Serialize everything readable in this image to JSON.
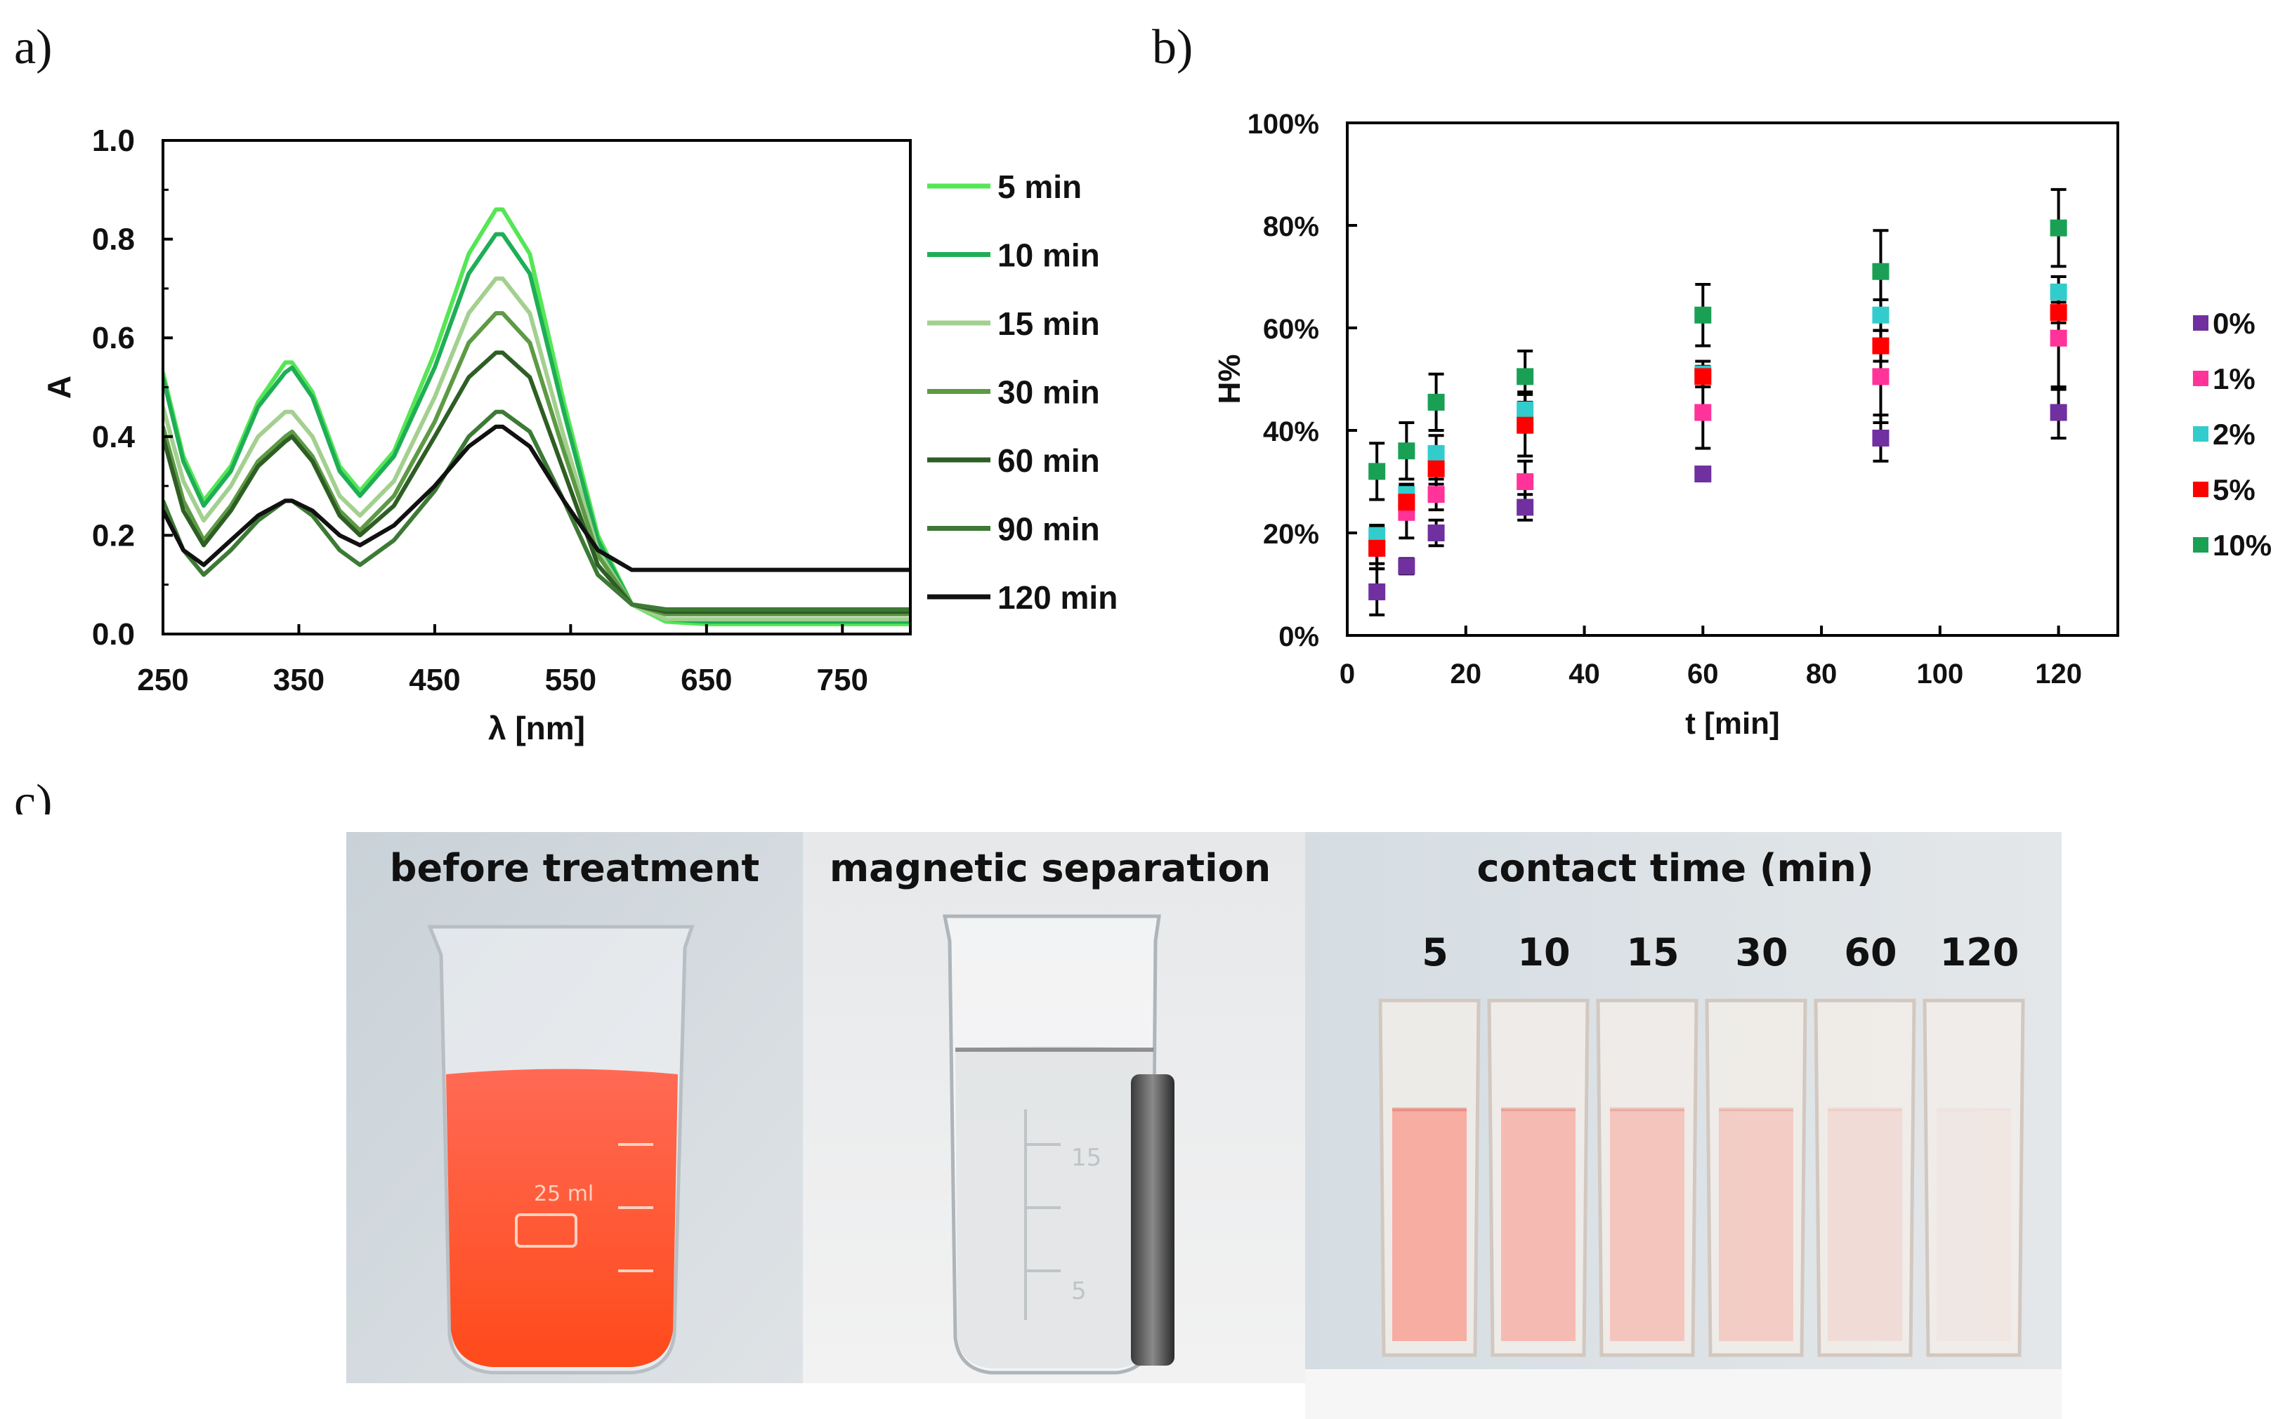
{
  "panels": {
    "a_label": "a)",
    "b_label": "b)",
    "c_label": "c)"
  },
  "chart_data": [
    {
      "id": "a",
      "type": "line",
      "xlabel": "λ [nm]",
      "ylabel": "A",
      "xlim": [
        250,
        800
      ],
      "ylim": [
        0,
        1.0
      ],
      "x_ticks": [
        "250",
        "350",
        "450",
        "550",
        "650",
        "750"
      ],
      "x_tick_values": [
        250,
        350,
        450,
        550,
        650,
        750
      ],
      "y_ticks": [
        "0.0",
        "0.2",
        "0.4",
        "0.6",
        "0.8",
        "1.0"
      ],
      "y_tick_values": [
        0,
        0.2,
        0.4,
        0.6,
        0.8,
        1.0
      ],
      "grid": false,
      "legend_position": "right",
      "x": [
        250,
        265,
        280,
        300,
        320,
        340,
        345,
        360,
        380,
        395,
        420,
        450,
        475,
        495,
        500,
        520,
        545,
        570,
        595,
        620,
        650,
        700,
        750,
        800
      ],
      "series": [
        {
          "name": "5 min",
          "color": "#55e655",
          "values": [
            0.53,
            0.36,
            0.27,
            0.34,
            0.47,
            0.55,
            0.55,
            0.49,
            0.34,
            0.29,
            0.37,
            0.57,
            0.77,
            0.86,
            0.86,
            0.77,
            0.47,
            0.2,
            0.06,
            0.025,
            0.02,
            0.02,
            0.02,
            0.02
          ]
        },
        {
          "name": "10 min",
          "color": "#1fae56",
          "values": [
            0.52,
            0.35,
            0.26,
            0.33,
            0.46,
            0.53,
            0.54,
            0.48,
            0.33,
            0.28,
            0.36,
            0.54,
            0.73,
            0.81,
            0.81,
            0.73,
            0.45,
            0.19,
            0.06,
            0.03,
            0.025,
            0.025,
            0.025,
            0.025
          ]
        },
        {
          "name": "15 min",
          "color": "#a3d08f",
          "values": [
            0.46,
            0.31,
            0.23,
            0.3,
            0.4,
            0.45,
            0.45,
            0.4,
            0.28,
            0.24,
            0.31,
            0.48,
            0.65,
            0.72,
            0.72,
            0.65,
            0.4,
            0.17,
            0.06,
            0.03,
            0.03,
            0.03,
            0.03,
            0.03
          ]
        },
        {
          "name": "30 min",
          "color": "#5d9a45",
          "values": [
            0.42,
            0.27,
            0.19,
            0.26,
            0.35,
            0.4,
            0.41,
            0.36,
            0.25,
            0.21,
            0.28,
            0.43,
            0.59,
            0.65,
            0.65,
            0.59,
            0.37,
            0.16,
            0.06,
            0.04,
            0.04,
            0.04,
            0.04,
            0.04
          ]
        },
        {
          "name": "60 min",
          "color": "#2e5e24",
          "values": [
            0.4,
            0.25,
            0.18,
            0.25,
            0.34,
            0.39,
            0.4,
            0.35,
            0.24,
            0.2,
            0.26,
            0.4,
            0.52,
            0.57,
            0.57,
            0.52,
            0.33,
            0.14,
            0.06,
            0.045,
            0.045,
            0.045,
            0.045,
            0.045
          ]
        },
        {
          "name": "90 min",
          "color": "#3d7a35",
          "values": [
            0.27,
            0.17,
            0.12,
            0.17,
            0.23,
            0.27,
            0.27,
            0.24,
            0.17,
            0.14,
            0.19,
            0.29,
            0.4,
            0.45,
            0.45,
            0.41,
            0.27,
            0.12,
            0.06,
            0.05,
            0.05,
            0.05,
            0.05,
            0.05
          ]
        },
        {
          "name": "120 min",
          "color": "#111111",
          "values": [
            0.25,
            0.17,
            0.14,
            0.19,
            0.24,
            0.27,
            0.27,
            0.25,
            0.2,
            0.18,
            0.22,
            0.3,
            0.38,
            0.42,
            0.42,
            0.38,
            0.27,
            0.17,
            0.13,
            0.13,
            0.13,
            0.13,
            0.13,
            0.13
          ]
        }
      ]
    },
    {
      "id": "b",
      "type": "scatter",
      "xlabel": "t [min]",
      "ylabel": "%H",
      "xlim": [
        0,
        130
      ],
      "ylim": [
        0,
        100
      ],
      "x_ticks": [
        "0",
        "20",
        "40",
        "60",
        "80",
        "100",
        "120"
      ],
      "x_tick_values": [
        0,
        20,
        40,
        60,
        80,
        100,
        120
      ],
      "y_ticks": [
        "0%",
        "20%",
        "40%",
        "60%",
        "80%",
        "100%"
      ],
      "y_tick_values": [
        0,
        20,
        40,
        60,
        80,
        100
      ],
      "grid": false,
      "legend_position": "right",
      "error_bars": true,
      "x": [
        5,
        10,
        15,
        30,
        60,
        90,
        120
      ],
      "series": [
        {
          "name": "0%",
          "color": "#7030a0",
          "values": [
            8.5,
            13.5,
            20,
            25,
            31.5,
            38.5,
            43.5
          ],
          "errors": [
            4.5,
            1.5,
            2.5,
            2.5,
            0,
            4.5,
            5
          ]
        },
        {
          "name": "1%",
          "color": "#ff3399",
          "values": [
            17,
            24,
            27.5,
            30,
            43.5,
            50.5,
            58
          ],
          "errors": [
            4,
            5,
            3,
            4,
            7,
            9,
            10
          ]
        },
        {
          "name": "2%",
          "color": "#33cccc",
          "values": [
            19.5,
            27.5,
            35.5,
            44,
            51,
            62.5,
            67
          ],
          "errors": [
            2,
            2,
            3.5,
            3.5,
            2.5,
            3,
            3
          ]
        },
        {
          "name": "5%",
          "color": "#ff0000",
          "values": [
            17,
            26,
            32.5,
            41,
            50.5,
            56.5,
            63
          ],
          "errors": [
            3,
            3,
            3,
            6,
            2,
            3,
            2
          ]
        },
        {
          "name": "10%",
          "color": "#1aa055",
          "values": [
            32,
            36,
            45.5,
            50.5,
            62.5,
            71,
            79.5
          ],
          "errors": [
            5.5,
            5.5,
            5.5,
            5,
            6,
            8,
            7.5
          ]
        }
      ]
    }
  ],
  "photo": {
    "label_before": "before treatment",
    "label_magnetic": "magnetic separation",
    "label_contact": "contact time (min)",
    "times": [
      "5",
      "10",
      "15",
      "30",
      "60",
      "120"
    ],
    "beaker_marks": [
      "25 ml"
    ],
    "cylinder_marks": [
      "15",
      "5"
    ],
    "cuvette_tints": [
      0.55,
      0.42,
      0.34,
      0.27,
      0.14,
      0.04
    ]
  }
}
